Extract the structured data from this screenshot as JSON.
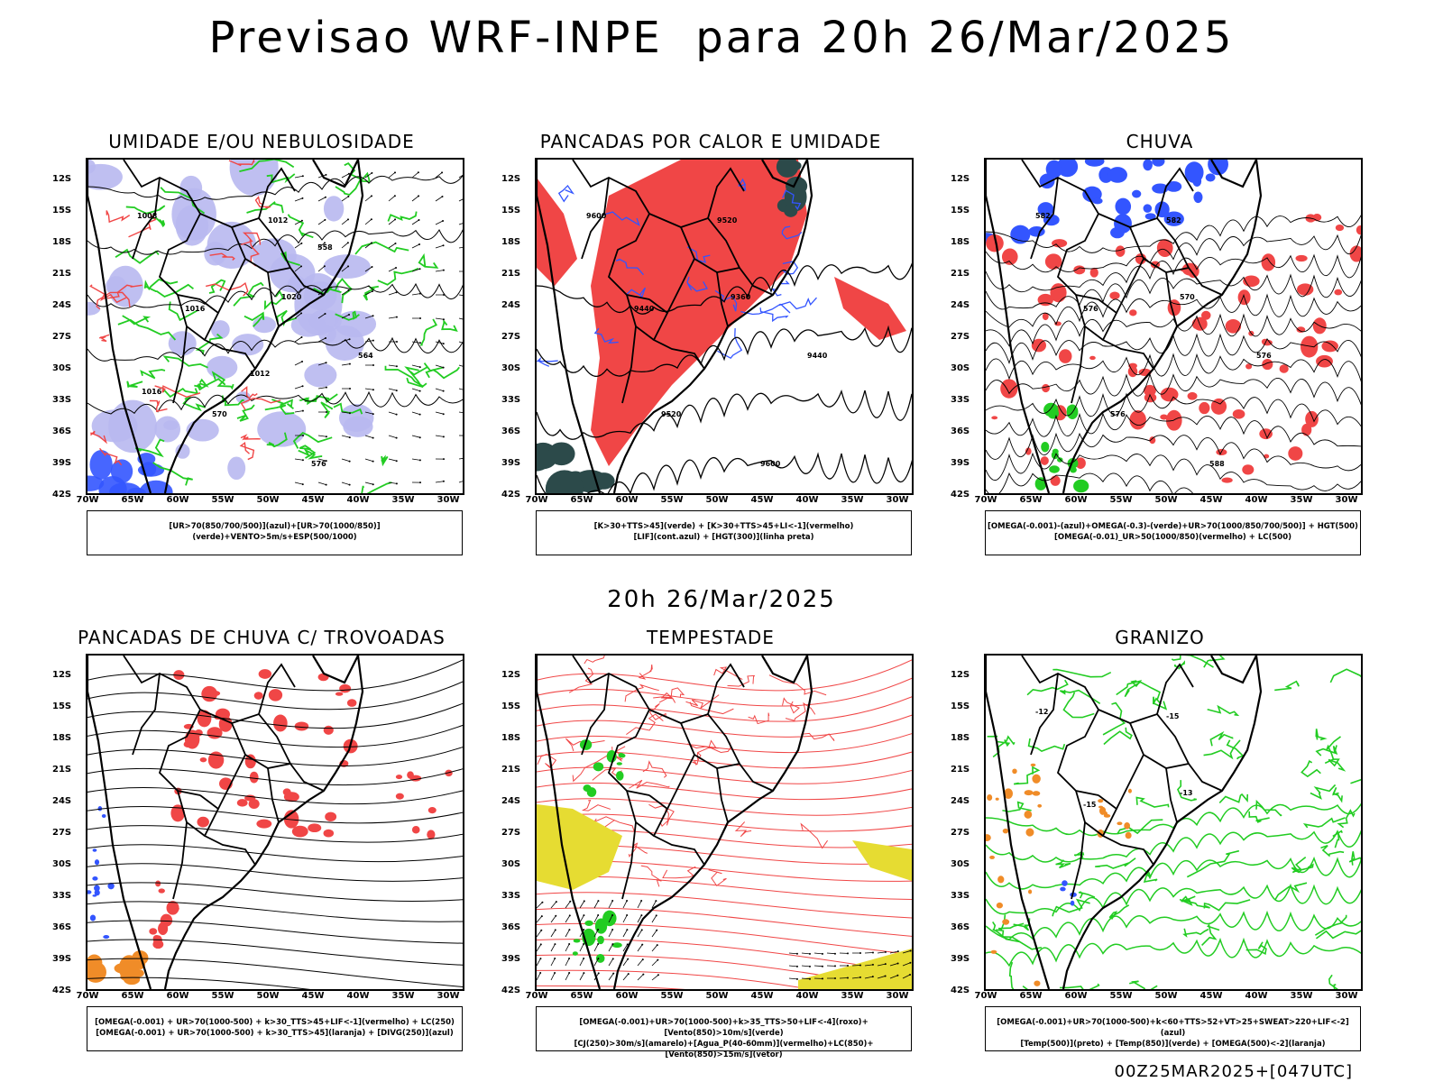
{
  "header": {
    "title": "Previsao WRF-INPE  para 20h 26/Mar/2025",
    "mid_title": "20h 26/Mar/2025",
    "footer": "00Z25MAR2025+[047UTC]"
  },
  "axes": {
    "lat_labels": [
      "12S",
      "15S",
      "18S",
      "21S",
      "24S",
      "27S",
      "30S",
      "33S",
      "36S",
      "39S",
      "42S"
    ],
    "lon_labels": [
      "70W",
      "65W",
      "60W",
      "55W",
      "50W",
      "45W",
      "40W",
      "35W",
      "30W"
    ]
  },
  "colors": {
    "red": "#f04646",
    "green": "#22cc22",
    "blue": "#3355ff",
    "lavender": "#b8b8f0",
    "yellow": "#e6dc32",
    "orange": "#f08c28",
    "darkteal": "#2c4a4a"
  },
  "panels": [
    {
      "title": "UMIDADE E/OU NEBULOSIDADE",
      "legend": [
        "[UR>70(850/700/500)](azul)+[UR>70(1000/850)](verde)+VENTO>5m/s+ESP(500/1000)"
      ],
      "labels": [
        "1008",
        "1012",
        "1016",
        "1020",
        "570",
        "576",
        "564",
        "558",
        "1012",
        "1016"
      ]
    },
    {
      "title": "PANCADAS POR CALOR E UMIDADE",
      "legend": [
        "[K>30+TTS>45](verde) + [K>30+TTS>45+LI<-1](vermelho)",
        "[LIF](cont.azul) + [HGT(300)](linha preta)"
      ],
      "labels": [
        "9600",
        "9520",
        "9440",
        "9360",
        "9520",
        "9600",
        "9440"
      ]
    },
    {
      "title": "CHUVA",
      "legend": [
        "[OMEGA(-0.001)-(azul)+OMEGA(-0.3)-(verde)+UR>70(1000/850/700/500)] + HGT(500)",
        "[OMEGA(-0.01)_UR>50(1000/850)(vermelho) + LC(500)"
      ],
      "labels": [
        "582",
        "582",
        "576",
        "570",
        "576",
        "588",
        "576"
      ]
    },
    {
      "title": "PANCADAS DE CHUVA C/ TROVOADAS",
      "legend": [
        "[OMEGA(-0.001) + UR>70(1000-500) + k>30_TTS>45+LIF<-1](vermelho) + LC(250)",
        "[OMEGA(-0.001) + UR>70(1000-500) + k>30_TTS>45](laranja) + [DIVG(250)](azul)"
      ],
      "labels": []
    },
    {
      "title": "TEMPESTADE",
      "legend": [
        "[OMEGA(-0.001)+UR>70(1000-500)+k>35_TTS>50+LIF<-4](roxo)+[Vento(850)>10m/s](verde)",
        "[CJ(250)>30m/s](amarelo)+[Agua_P(40-60mm)](vermelho)+LC(850)+[Vento(850)>15m/s](vetor)"
      ],
      "labels": []
    },
    {
      "title": "GRANIZO",
      "legend": [
        "[OMEGA(-0.001)+UR>70(1000-500)+k<60+TTS>52+VT>25+SWEAT>220+LIF<-2](azul)",
        "[Temp(500)](preto) + [Temp(850)](verde) + [OMEGA(500)<-2](laranja)"
      ],
      "labels": [
        "-12",
        "-15",
        "-15",
        "-13"
      ]
    }
  ]
}
